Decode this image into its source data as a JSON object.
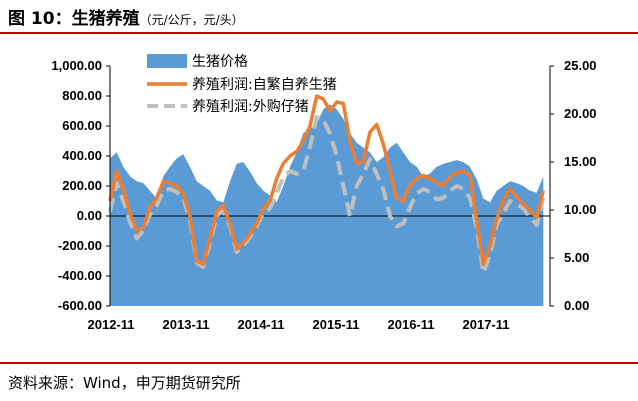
{
  "header": {
    "figure_label": "图 10：",
    "title": "生猪养殖",
    "unit": "（元/公斤，元/头）"
  },
  "footer": {
    "source": "资料来源：Wind，申万期货研究所"
  },
  "colors": {
    "area": "#5b9bd5",
    "self_breed": "#ed7d31",
    "purchased": "#bfbfbf",
    "accent_rule": "#c00000"
  },
  "chart_data": {
    "type": "area+line",
    "title": "",
    "x_tick_labels": [
      "2012-11",
      "2013-11",
      "2014-11",
      "2015-11",
      "2016-11",
      "2017-11"
    ],
    "left_axis": {
      "range": [
        -600,
        1000
      ],
      "ticks": [
        -600,
        -400,
        -200,
        0,
        200,
        400,
        600,
        800,
        1000
      ],
      "tick_labels": [
        "-600.00",
        "-400.00",
        "-200.00",
        "0.00",
        "200.00",
        "400.00",
        "600.00",
        "800.00",
        "1,000.00"
      ]
    },
    "right_axis": {
      "range": [
        0,
        25
      ],
      "ticks": [
        0,
        5,
        10,
        15,
        20,
        25
      ],
      "tick_labels": [
        "0.00",
        "5.00",
        "10.00",
        "15.00",
        "20.00",
        "25.00"
      ]
    },
    "x_range": [
      0,
      66
    ],
    "series": [
      {
        "name": "生猪价格",
        "type": "area",
        "axis": "right",
        "x": [
          0,
          1,
          2,
          3,
          4,
          5,
          6,
          7,
          8,
          9,
          10,
          11,
          12,
          13,
          14,
          15,
          16,
          17,
          18,
          19,
          20,
          21,
          22,
          23,
          24,
          25,
          26,
          27,
          28,
          29,
          30,
          31,
          32,
          33,
          34,
          35,
          36,
          37,
          38,
          39,
          40,
          41,
          42,
          43,
          44,
          45,
          46,
          47,
          48,
          49,
          50,
          51,
          52,
          53,
          54,
          55,
          56,
          57,
          58,
          59,
          60,
          61,
          62,
          63,
          64,
          65
        ],
        "values": [
          15.4,
          16.0,
          14.5,
          13.5,
          13.0,
          12.8,
          12.0,
          11.2,
          13.5,
          14.5,
          15.4,
          15.8,
          14.5,
          13.0,
          12.5,
          12.0,
          11.0,
          10.8,
          13.0,
          14.8,
          15.0,
          14.0,
          12.8,
          12.0,
          11.5,
          10.8,
          12.5,
          14.5,
          16.0,
          18.0,
          18.5,
          19.0,
          20.5,
          21.0,
          20.5,
          19.5,
          18.0,
          17.0,
          16.5,
          16.0,
          15.0,
          15.5,
          16.5,
          17.0,
          16.0,
          15.0,
          14.5,
          13.5,
          13.8,
          14.5,
          14.8,
          15.0,
          15.2,
          15.0,
          14.5,
          13.2,
          11.2,
          10.8,
          12.0,
          12.5,
          13.0,
          12.8,
          12.5,
          12.0,
          11.8,
          13.5
        ]
      },
      {
        "name": "养殖利润:自繁自养生猪",
        "type": "line",
        "axis": "left",
        "x": [
          0,
          1,
          2,
          3,
          4,
          5,
          6,
          7,
          8,
          9,
          10,
          11,
          12,
          13,
          14,
          15,
          16,
          17,
          18,
          19,
          20,
          21,
          22,
          23,
          24,
          25,
          26,
          27,
          28,
          29,
          30,
          31,
          32,
          33,
          34,
          35,
          36,
          37,
          38,
          39,
          40,
          41,
          42,
          43,
          44,
          45,
          46,
          47,
          48,
          49,
          50,
          51,
          52,
          53,
          54,
          55,
          56,
          57,
          58,
          59,
          60,
          61,
          62,
          63,
          64,
          65
        ],
        "values": [
          100,
          300,
          180,
          20,
          -100,
          -80,
          60,
          120,
          230,
          220,
          200,
          150,
          0,
          -300,
          -320,
          -150,
          30,
          70,
          -50,
          -220,
          -180,
          -120,
          -50,
          50,
          100,
          250,
          350,
          400,
          430,
          500,
          600,
          800,
          780,
          700,
          760,
          750,
          500,
          350,
          360,
          560,
          610,
          480,
          300,
          120,
          100,
          200,
          250,
          270,
          250,
          220,
          200,
          260,
          290,
          300,
          270,
          -30,
          -320,
          -200,
          -20,
          100,
          180,
          130,
          80,
          40,
          -10,
          170
        ]
      },
      {
        "name": "养殖利润:外购仔猪",
        "type": "line",
        "dashed": true,
        "axis": "left",
        "x": [
          0,
          1,
          2,
          3,
          4,
          5,
          6,
          7,
          8,
          9,
          10,
          11,
          12,
          13,
          14,
          15,
          16,
          17,
          18,
          19,
          20,
          21,
          22,
          23,
          24,
          25,
          26,
          27,
          28,
          29,
          30,
          31,
          32,
          33,
          34,
          35,
          36,
          37,
          38,
          39,
          40,
          41,
          42,
          43,
          44,
          45,
          46,
          47,
          48,
          49,
          50,
          51,
          52,
          53,
          54,
          55,
          56,
          57,
          58,
          59,
          60,
          61,
          62,
          63,
          64,
          65
        ],
        "values": [
          30,
          220,
          100,
          -40,
          -150,
          -100,
          10,
          70,
          170,
          180,
          160,
          120,
          -30,
          -310,
          -340,
          -180,
          0,
          40,
          -70,
          -240,
          -200,
          -140,
          -70,
          20,
          50,
          150,
          260,
          300,
          280,
          300,
          460,
          660,
          640,
          550,
          400,
          200,
          0,
          200,
          280,
          380,
          280,
          180,
          0,
          -70,
          -50,
          60,
          150,
          180,
          160,
          110,
          120,
          170,
          200,
          180,
          120,
          -80,
          -380,
          -260,
          -60,
          20,
          100,
          80,
          50,
          -10,
          -60,
          120
        ]
      }
    ]
  }
}
